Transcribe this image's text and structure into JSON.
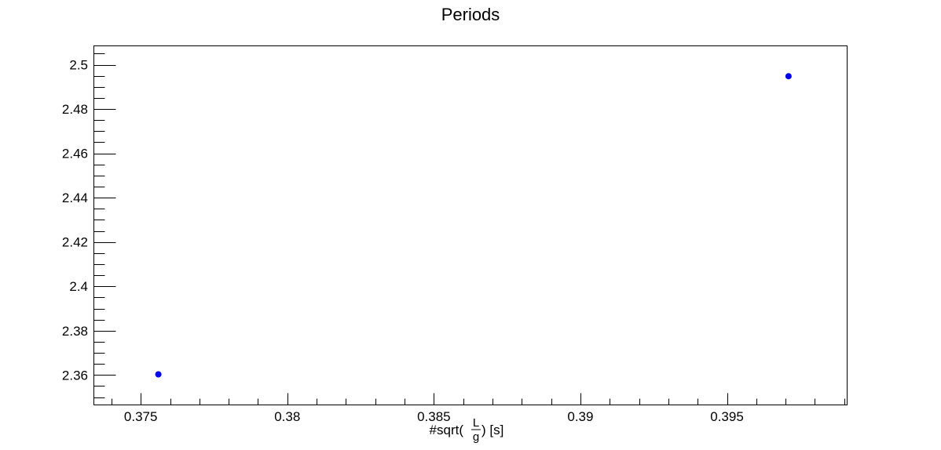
{
  "chart_data": {
    "type": "scatter",
    "title": "Periods",
    "xlabel": "#sqrt(\\frac{L}{g}) [s]",
    "xlabel_parts": {
      "prefix": "#sqrt(",
      "numerator": "L",
      "denominator": "g",
      "suffix": ") [s]"
    },
    "ylabel": "",
    "xlim": [
      0.3734,
      0.3991
    ],
    "ylim": [
      2.3465,
      2.5085
    ],
    "x_ticks": [
      0.375,
      0.38,
      0.385,
      0.39,
      0.395
    ],
    "x_tick_labels": [
      "0.375",
      "0.38",
      "0.385",
      "0.39",
      "0.395"
    ],
    "y_ticks": [
      2.36,
      2.38,
      2.4,
      2.42,
      2.44,
      2.46,
      2.48,
      2.5
    ],
    "y_tick_labels": [
      "2.36",
      "2.38",
      "2.4",
      "2.42",
      "2.44",
      "2.46",
      "2.48",
      "2.5"
    ],
    "series": [
      {
        "x": [
          0.3756,
          0.3971
        ],
        "y": [
          2.3603,
          2.4948
        ],
        "color": "#0000ff"
      }
    ],
    "grid": false,
    "legend": "none"
  }
}
